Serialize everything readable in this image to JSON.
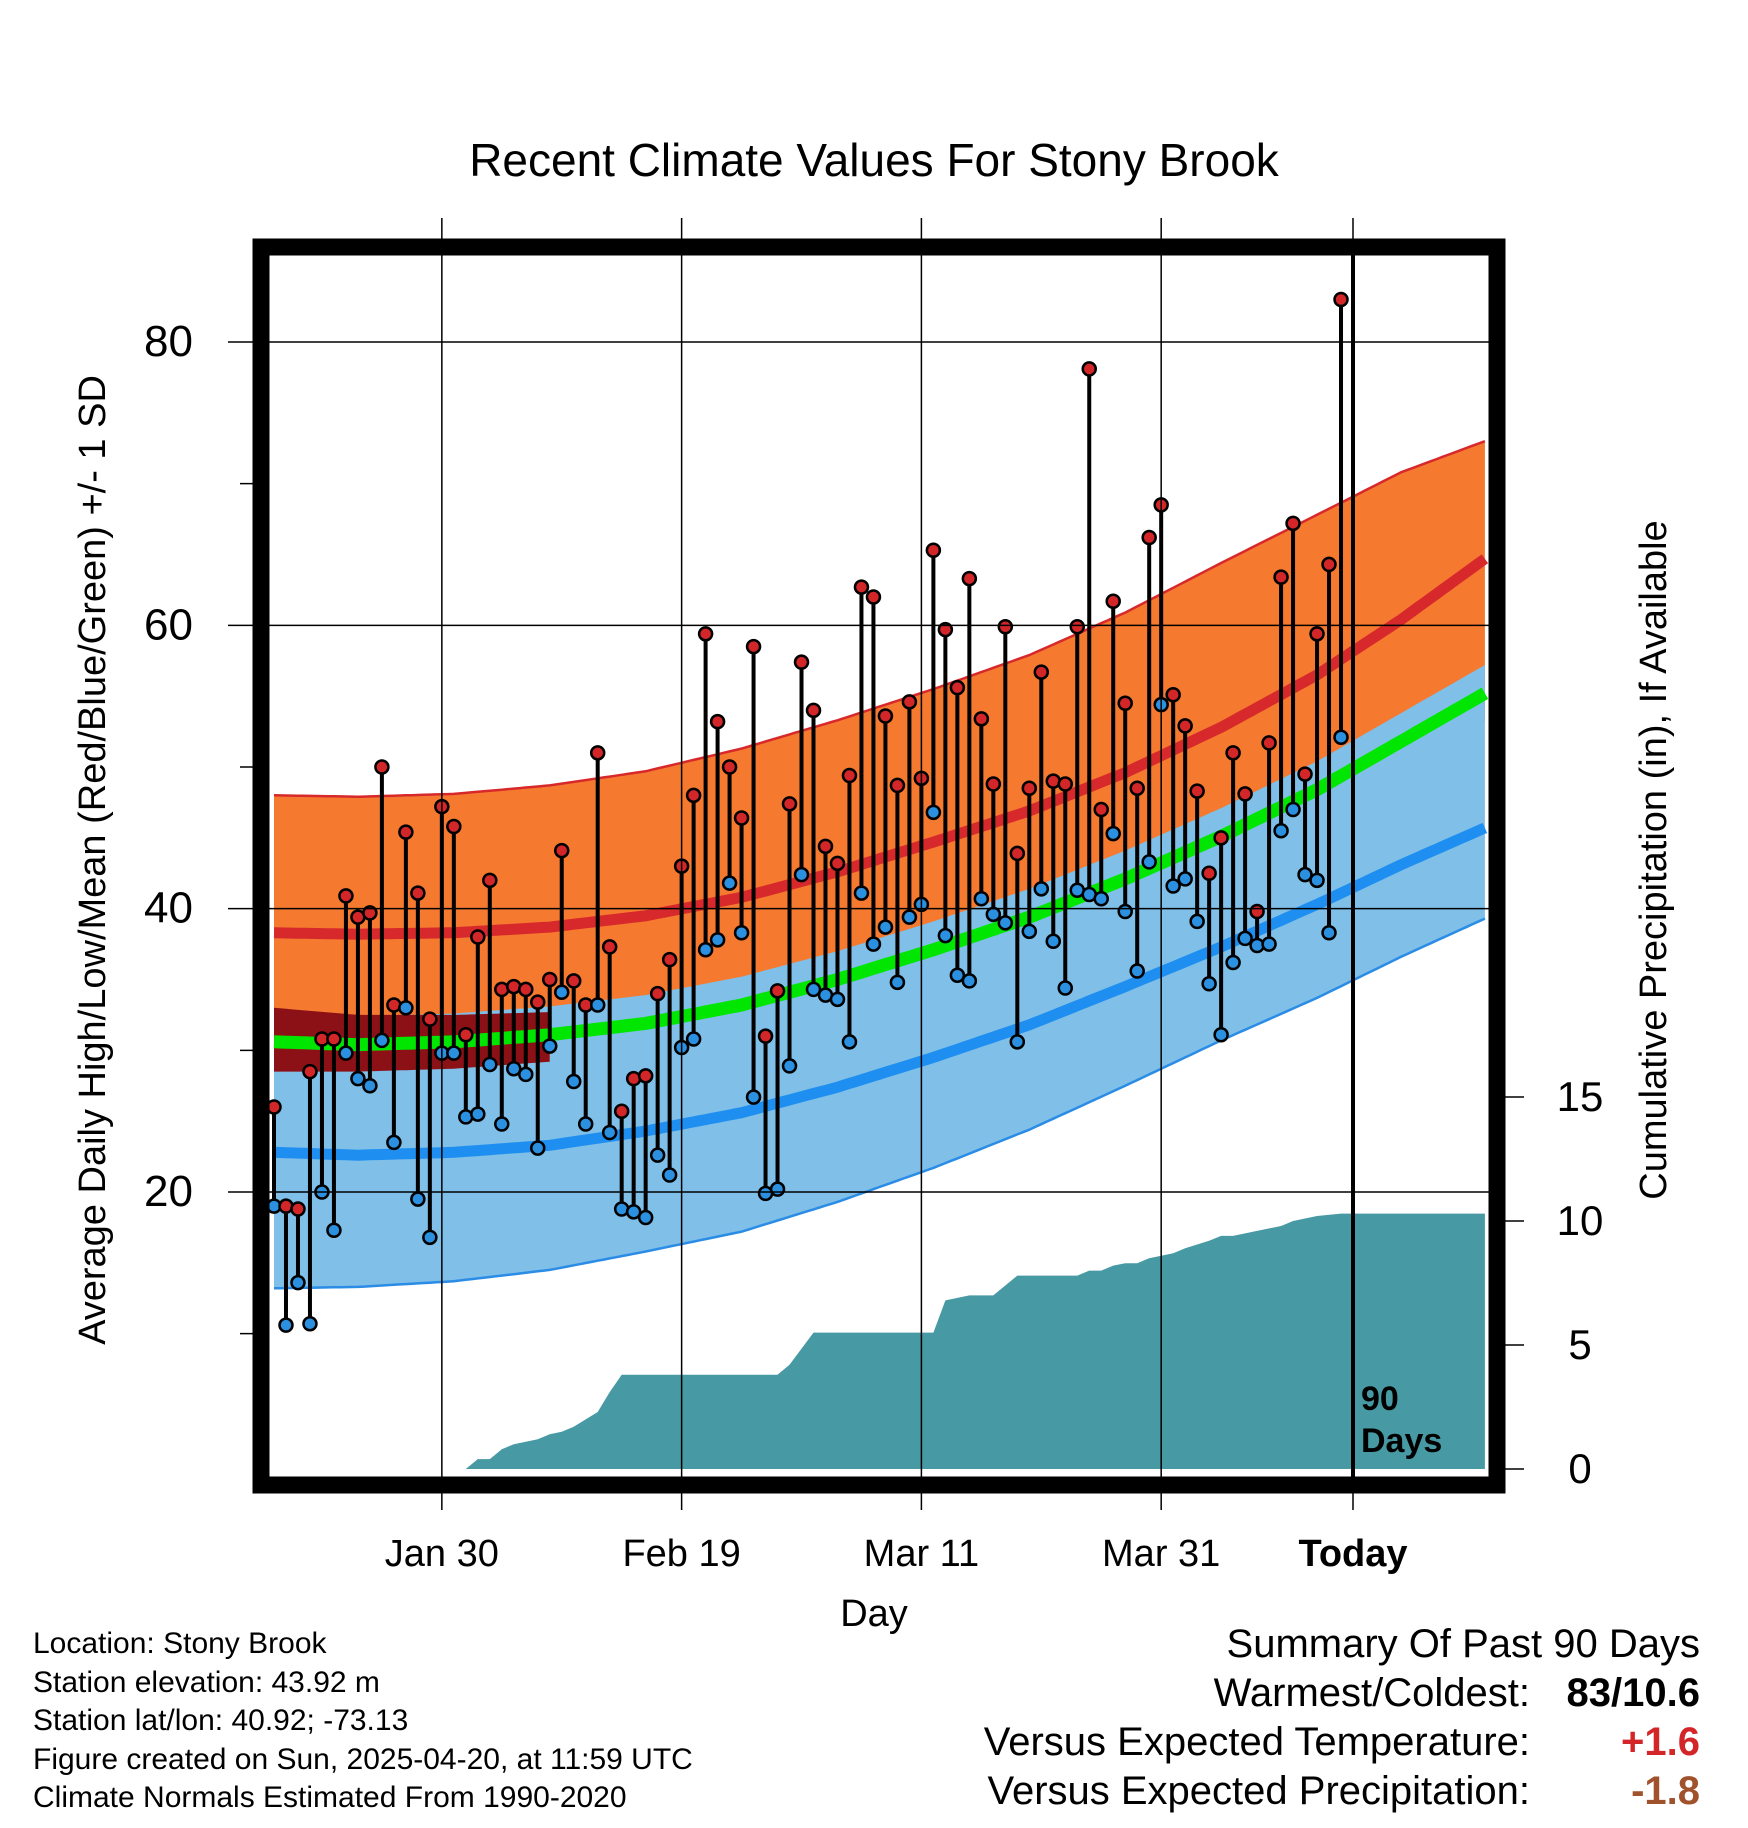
{
  "chart_data": {
    "type": "line",
    "title": "Recent Climate Values For Stony Brook",
    "xlabel": "Day",
    "ylabel": "Average Daily High/Low/Mean (Red/Blue/Green) +/- 1 SD",
    "y2label": "Cumulative Precipitation (in), If Available",
    "x_tick_labels": [
      "Jan 30",
      "Feb 19",
      "Mar 11",
      "Mar 31",
      "Today"
    ],
    "y_ticks": [
      "20",
      "40",
      "60",
      "80"
    ],
    "y2_ticks": [
      "0",
      "5",
      "10",
      "15"
    ],
    "ylim": [
      0,
      88
    ],
    "y2lim": [
      0,
      20
    ],
    "x_range_days": [
      1,
      102
    ],
    "today_day": 91,
    "today_label": "90\nDays",
    "normal_high": [
      38.3,
      38.2,
      38.3,
      38.7,
      39.5,
      40.8,
      42.6,
      44.7,
      46.9,
      49.6,
      52.8,
      56.5,
      60.4,
      64.7
    ],
    "normal_high_sd_upper": [
      48.0,
      47.9,
      48.1,
      48.7,
      49.7,
      51.3,
      53.3,
      55.5,
      57.9,
      60.9,
      64.4,
      67.8,
      70.8,
      73.0
    ],
    "normal_low": [
      22.8,
      22.6,
      22.8,
      23.3,
      24.3,
      25.6,
      27.4,
      29.5,
      31.8,
      34.5,
      37.3,
      40.3,
      43.1,
      45.7
    ],
    "normal_low_sd_lower": [
      13.2,
      13.3,
      13.7,
      14.5,
      15.8,
      17.2,
      19.3,
      21.7,
      24.4,
      27.5,
      30.7,
      33.7,
      36.6,
      39.3
    ],
    "normal_mean": [
      30.6,
      30.4,
      30.6,
      31.1,
      31.9,
      33.2,
      35.0,
      37.1,
      39.4,
      42.1,
      45.1,
      48.4,
      51.8,
      55.2
    ],
    "normal_x_days": [
      1,
      8,
      16,
      24,
      32,
      40,
      48,
      56,
      64,
      72,
      80,
      88,
      95,
      102
    ],
    "daily_high": [
      26,
      19,
      18.8,
      28.5,
      30.8,
      30.8,
      40.9,
      39.4,
      39.7,
      50,
      33.2,
      45.4,
      41.1,
      32.2,
      47.2,
      45.8,
      31.1,
      38,
      42,
      34.3,
      34.5,
      34.3,
      33.4,
      35,
      44.1,
      34.9,
      33.2,
      51,
      37.3,
      25.7,
      28,
      28.2,
      34,
      36.4,
      43,
      48,
      59.4,
      53.2,
      50,
      46.4,
      58.5,
      31,
      34.2,
      47.4,
      57.4,
      54,
      44.4,
      43.2,
      49.4,
      62.7,
      62,
      53.6,
      48.7,
      54.6,
      49.2,
      65.3,
      59.7,
      55.6,
      63.3,
      53.4,
      48.8,
      59.9,
      43.9,
      48.5,
      56.7,
      49,
      48.8,
      59.9,
      78.1,
      47,
      61.7,
      54.5,
      48.5,
      66.2,
      68.5,
      55.1,
      52.9,
      48.3,
      42.5,
      45,
      51,
      48.1,
      39.8,
      51.7,
      63.4,
      67.2,
      49.5,
      59.4,
      64.3,
      83
    ],
    "daily_low": [
      19,
      10.6,
      13.6,
      10.7,
      20,
      17.3,
      29.8,
      28,
      27.5,
      30.7,
      23.5,
      33,
      19.5,
      16.8,
      29.8,
      29.8,
      25.3,
      25.5,
      29,
      24.8,
      28.7,
      28.3,
      23.1,
      30.3,
      34.1,
      27.8,
      24.8,
      33.2,
      24.2,
      18.8,
      18.6,
      18.2,
      22.6,
      21.2,
      30.2,
      30.8,
      37.1,
      37.8,
      41.8,
      38.3,
      26.7,
      19.9,
      20.2,
      28.9,
      42.4,
      34.3,
      33.9,
      33.6,
      30.6,
      41.1,
      37.5,
      38.7,
      34.8,
      39.4,
      40.3,
      46.8,
      38.1,
      35.3,
      34.9,
      40.7,
      39.6,
      39,
      30.6,
      38.4,
      41.4,
      37.7,
      34.4,
      41.3,
      41,
      40.7,
      45.3,
      39.8,
      35.6,
      43.3,
      54.4,
      41.6,
      42.1,
      39.1,
      34.7,
      31.1,
      36.2,
      37.9,
      37.4,
      37.5,
      45.5,
      47,
      42.4,
      42,
      38.3,
      52.1
    ],
    "precip_x_days": [
      1,
      17,
      18,
      19,
      20,
      21,
      23,
      24,
      25,
      26,
      27,
      28,
      29,
      30,
      31,
      32,
      34,
      38,
      42,
      43,
      44,
      46,
      48,
      54,
      55,
      56,
      57,
      59,
      60,
      61,
      63,
      64,
      65,
      66,
      68,
      69,
      70,
      71,
      72,
      73,
      74,
      76,
      77,
      79,
      80,
      81,
      83,
      85,
      86,
      88,
      90,
      92,
      102
    ],
    "precip_cumulative": [
      0,
      0,
      0.4,
      0.4,
      0.8,
      1.0,
      1.2,
      1.4,
      1.5,
      1.7,
      2.0,
      2.3,
      3.1,
      3.8,
      3.8,
      3.8,
      3.8,
      3.8,
      3.8,
      3.8,
      4.2,
      5.5,
      5.5,
      5.5,
      5.5,
      5.5,
      6.8,
      7.0,
      7.0,
      7.0,
      7.8,
      7.8,
      7.8,
      7.8,
      7.8,
      8.0,
      8.0,
      8.2,
      8.3,
      8.3,
      8.5,
      8.7,
      8.9,
      9.2,
      9.4,
      9.4,
      9.6,
      9.8,
      10.0,
      10.2,
      10.3,
      10.3,
      10.3
    ],
    "colors": {
      "high_band": "#f5792f",
      "high_band_edge": "#d7292b",
      "high_line": "#d7292b",
      "low_band": "#7fbfe8",
      "low_band_edge": "#2b8ce6",
      "low_line": "#1e8ff0",
      "mean_line": "#00e600",
      "dark_band": "#8c1116",
      "precip": "#4799a3",
      "high_dot": "#d32629",
      "low_dot": "#2b90e0"
    }
  },
  "footer": {
    "location": "Location: Stony Brook",
    "elevation": "Station elevation: 43.92 m",
    "latlon": "Station lat/lon: 40.92; -73.13",
    "created": "Figure created on Sun, 2025-04-20, at 11:59 UTC",
    "normals": "Climate Normals Estimated From 1990-2020"
  },
  "summary": {
    "title": "Summary Of Past 90 Days",
    "warmest_coldest_label": "Warmest/Coldest:",
    "warmest_coldest_value": "83/10.6",
    "temp_label": "Versus Expected Temperature:",
    "temp_value": "+1.6",
    "temp_color": "#d32629",
    "precip_label": "Versus Expected Precipitation:",
    "precip_value": "-1.8",
    "precip_color": "#a0522d"
  }
}
